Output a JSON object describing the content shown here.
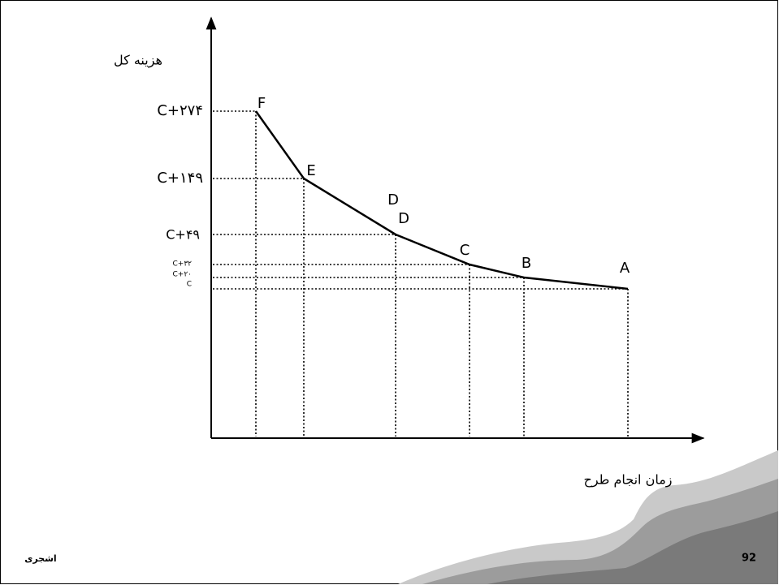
{
  "diagram": {
    "y_axis_title": "هزینه کل",
    "x_axis_title": "زمان انجام طرح",
    "y_labels": [
      "C+۲۷۴",
      "C+۱۴۹",
      "C+۴۹",
      "C+۳۲",
      "C+۲۰",
      "C"
    ],
    "points": [
      "F",
      "E",
      "D",
      "D",
      "C",
      "B",
      "A"
    ]
  },
  "footer": {
    "author": "اشجری",
    "page_number": "92"
  }
}
